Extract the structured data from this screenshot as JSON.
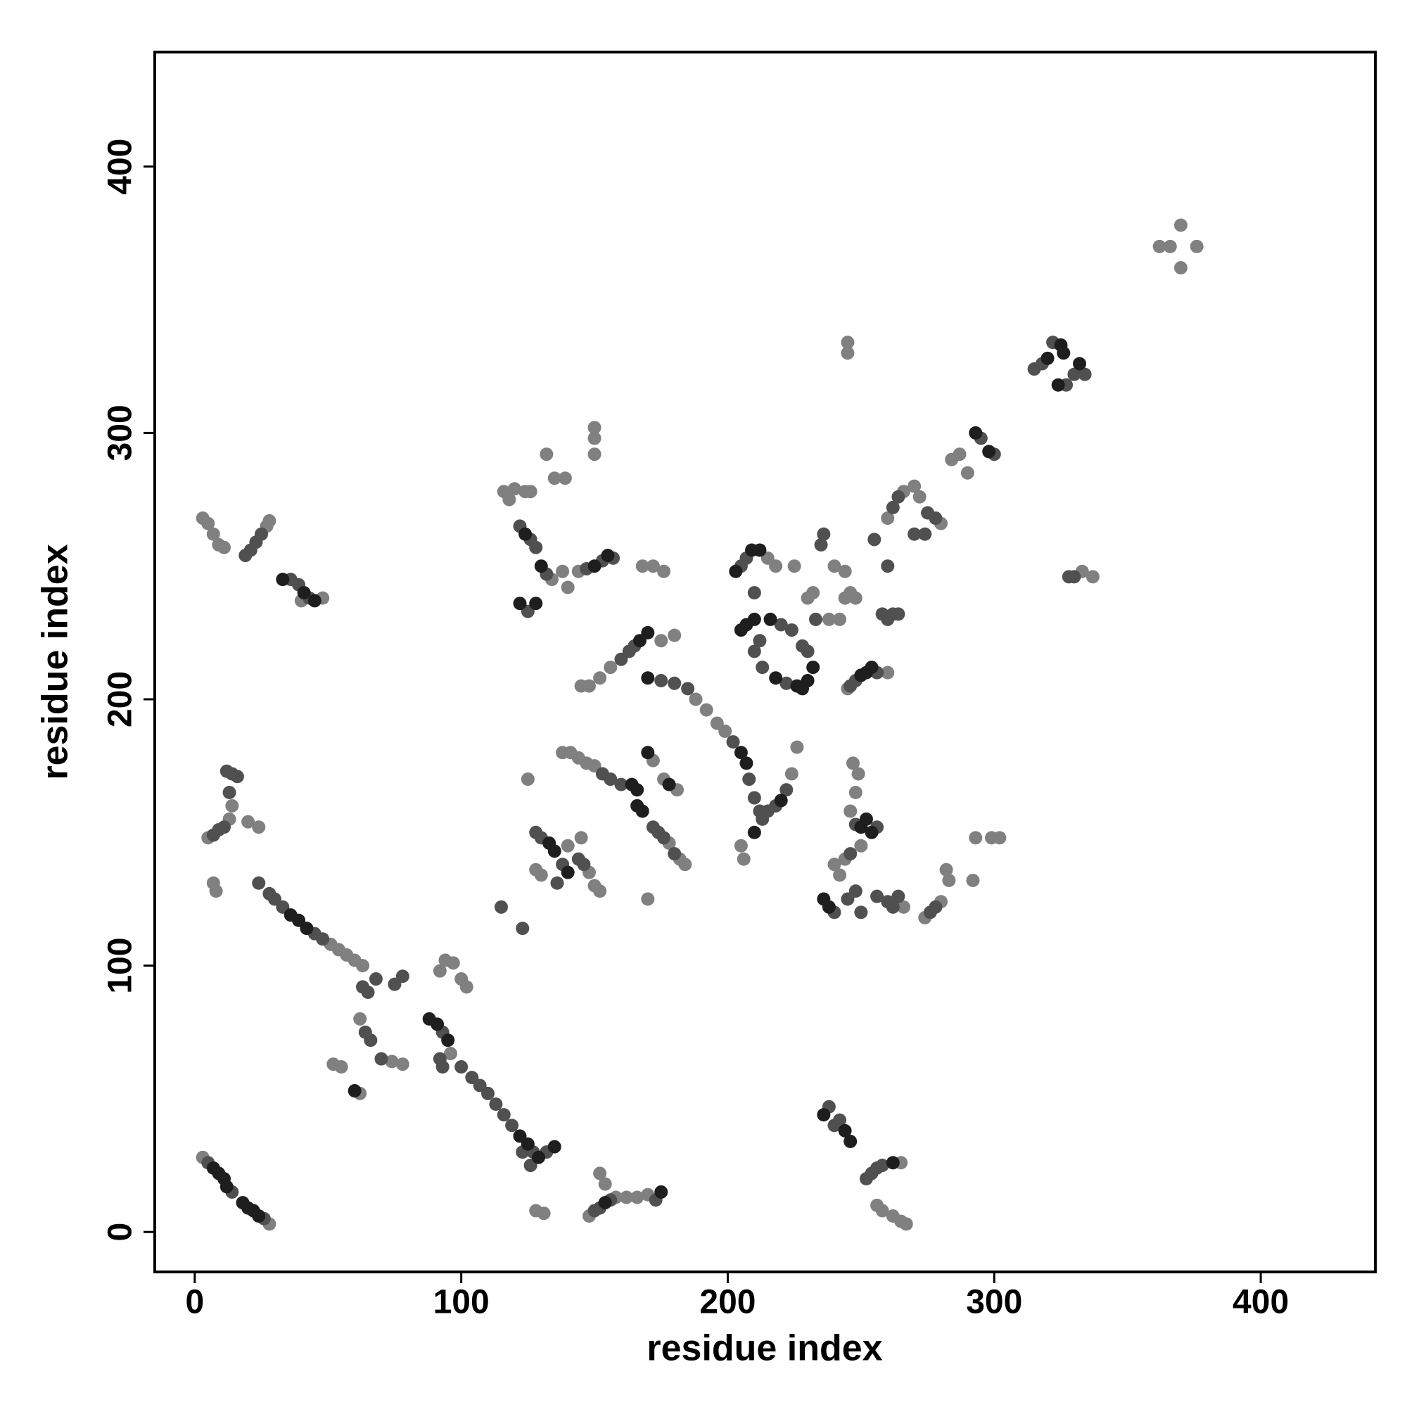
{
  "chart_data": {
    "type": "scatter",
    "xlabel": "residue index",
    "ylabel": "residue index",
    "xlim": [
      -15,
      443
    ],
    "ylim": [
      -15,
      443
    ],
    "xticks": [
      0,
      100,
      200,
      300,
      400
    ],
    "yticks": [
      0,
      100,
      200,
      300,
      400
    ],
    "series": [
      {
        "color": "#808080",
        "x": [
          3,
          28,
          3,
          5,
          7,
          9,
          11,
          27,
          28,
          48,
          40,
          14,
          13,
          5,
          20,
          24,
          7,
          8,
          51,
          54,
          57,
          60,
          63,
          62,
          74,
          78,
          52,
          55,
          62,
          96,
          92,
          94,
          97,
          100,
          102,
          128,
          131,
          148,
          158,
          162,
          166,
          170,
          152,
          154,
          256,
          258,
          262,
          265,
          267,
          265,
          125,
          148,
          150,
          152,
          145,
          140,
          128,
          130,
          138,
          141,
          144,
          147,
          150,
          172,
          176,
          181,
          178,
          182,
          184,
          170,
          148,
          152,
          156,
          175,
          180,
          188,
          192,
          196,
          199,
          224,
          226,
          205,
          206,
          116,
          118,
          120,
          124,
          126,
          134,
          138,
          140,
          132,
          135,
          139,
          150,
          150,
          150,
          144,
          168,
          172,
          176,
          145,
          218,
          215,
          225,
          232,
          230,
          240,
          244,
          238,
          244,
          246,
          248,
          242,
          245,
          260,
          260,
          266,
          270,
          272,
          280,
          284,
          287,
          290,
          333,
          337,
          362,
          366,
          370,
          370,
          376,
          245,
          245,
          247,
          249,
          248,
          246,
          250,
          244,
          240,
          242,
          266,
          274,
          280,
          282,
          283,
          293,
          299,
          302,
          292
        ],
        "values": [
          28,
          3,
          268,
          266,
          262,
          258,
          257,
          265,
          267,
          238,
          237,
          160,
          155,
          148,
          154,
          152,
          131,
          128,
          108,
          106,
          104,
          102,
          100,
          80,
          64,
          63,
          63,
          62,
          52,
          67,
          98,
          102,
          101,
          95,
          92,
          8,
          7,
          6,
          13,
          13,
          13,
          14,
          22,
          18,
          10,
          8,
          6,
          4,
          3,
          26,
          170,
          135,
          130,
          128,
          148,
          145,
          136,
          134,
          180,
          180,
          178,
          176,
          175,
          177,
          170,
          166,
          146,
          140,
          138,
          125,
          205,
          208,
          212,
          222,
          224,
          200,
          196,
          191,
          188,
          172,
          182,
          145,
          140,
          278,
          275,
          279,
          278,
          278,
          245,
          248,
          242,
          292,
          283,
          283,
          302,
          298,
          292,
          248,
          250,
          250,
          248,
          205,
          250,
          253,
          250,
          240,
          238,
          250,
          248,
          230,
          238,
          240,
          238,
          230,
          204,
          210,
          268,
          278,
          280,
          276,
          266,
          290,
          292,
          285,
          248,
          246,
          370,
          370,
          378,
          362,
          370,
          334,
          330,
          176,
          172,
          165,
          158,
          145,
          140,
          138,
          134,
          122,
          118,
          124,
          136,
          132,
          148,
          148,
          148,
          132
        ]
      },
      {
        "color": "#505050",
        "x": [
          5,
          14,
          26,
          19,
          21,
          23,
          25,
          36,
          39,
          43,
          12,
          14,
          16,
          13,
          11,
          9,
          7,
          24,
          28,
          30,
          33,
          45,
          48,
          63,
          65,
          68,
          75,
          78,
          64,
          66,
          70,
          93,
          92,
          93,
          100,
          104,
          107,
          110,
          113,
          116,
          119,
          123,
          126,
          127,
          132,
          150,
          152,
          156,
          173,
          238,
          240,
          242,
          252,
          254,
          256,
          258,
          115,
          123,
          128,
          130,
          138,
          136,
          144,
          146,
          153,
          156,
          160,
          172,
          174,
          176,
          180,
          160,
          163,
          165,
          175,
          180,
          185,
          202,
          208,
          210,
          212,
          215,
          218,
          222,
          213,
          122,
          126,
          128,
          132,
          125,
          153,
          157,
          147,
          205,
          207,
          210,
          212,
          210,
          213,
          222,
          230,
          228,
          224,
          220,
          235,
          236,
          233,
          246,
          248,
          256,
          258,
          260,
          262,
          264,
          255,
          260,
          262,
          264,
          270,
          274,
          275,
          278,
          295,
          300,
          315,
          318,
          322,
          327,
          330,
          334,
          328,
          330,
          248,
          256,
          246,
          240,
          245,
          248,
          250,
          256,
          260,
          262,
          264,
          276,
          278
        ],
        "values": [
          26,
          15,
          5,
          254,
          256,
          259,
          262,
          245,
          243,
          238,
          173,
          172,
          171,
          165,
          152,
          151,
          149,
          131,
          127,
          125,
          122,
          112,
          110,
          92,
          90,
          95,
          93,
          96,
          75,
          72,
          65,
          75,
          65,
          62,
          62,
          58,
          55,
          52,
          48,
          44,
          40,
          30,
          25,
          30,
          30,
          8,
          9,
          12,
          12,
          47,
          40,
          42,
          20,
          22,
          24,
          25,
          122,
          114,
          150,
          148,
          138,
          131,
          140,
          138,
          172,
          170,
          168,
          152,
          150,
          148,
          142,
          215,
          218,
          220,
          207,
          206,
          204,
          184,
          170,
          163,
          158,
          158,
          160,
          166,
          155,
          265,
          260,
          257,
          247,
          233,
          252,
          253,
          249,
          250,
          253,
          240,
          222,
          218,
          212,
          206,
          218,
          220,
          226,
          228,
          258,
          262,
          230,
          205,
          207,
          210,
          232,
          230,
          232,
          232,
          260,
          250,
          272,
          276,
          262,
          262,
          270,
          268,
          298,
          292,
          324,
          326,
          334,
          318,
          322,
          322,
          246,
          246,
          153,
          152,
          142,
          120,
          125,
          128,
          120,
          126,
          124,
          122,
          126,
          120,
          122
        ]
      },
      {
        "color": "#1e1e1e",
        "x": [
          7,
          9,
          11,
          12,
          18,
          20,
          22,
          24,
          36,
          39,
          42,
          33,
          41,
          45,
          125,
          122,
          129,
          135,
          133,
          140,
          164,
          166,
          166,
          168,
          170,
          178,
          167,
          170,
          170,
          205,
          207,
          210,
          228,
          230,
          226,
          232,
          212,
          209,
          203,
          250,
          252,
          254,
          250,
          252,
          254,
          236,
          238,
          246,
          244,
          236,
          320,
          325,
          326,
          324,
          332,
          298,
          293,
          130,
          128,
          122,
          124,
          155,
          150,
          216,
          218,
          210,
          220,
          95,
          88,
          91,
          60,
          262,
          154,
          175,
          207,
          205,
          135
        ],
        "values": [
          24,
          22,
          20,
          17,
          11,
          9,
          8,
          6,
          119,
          117,
          114,
          245,
          240,
          237,
          33,
          36,
          28,
          143,
          146,
          135,
          168,
          166,
          160,
          158,
          180,
          168,
          222,
          225,
          208,
          226,
          228,
          230,
          204,
          207,
          205,
          212,
          256,
          256,
          248,
          209,
          210,
          212,
          152,
          155,
          150,
          125,
          122,
          34,
          38,
          44,
          328,
          333,
          330,
          318,
          326,
          293,
          300,
          250,
          236,
          236,
          262,
          254,
          250,
          230,
          208,
          150,
          162,
          72,
          80,
          78,
          53,
          26,
          11,
          15,
          176,
          180,
          32
        ]
      }
    ]
  }
}
